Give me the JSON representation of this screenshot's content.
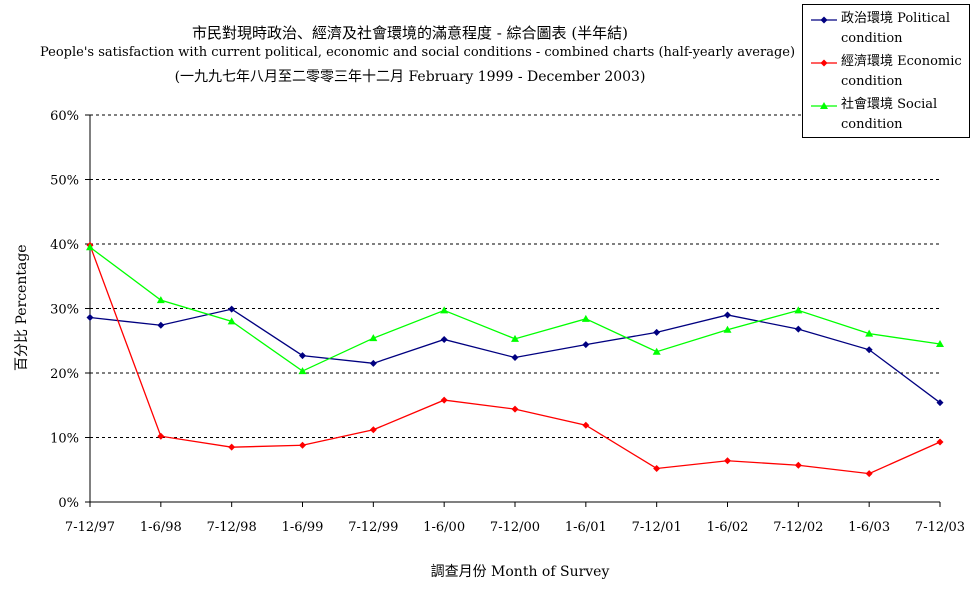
{
  "chart_data": {
    "type": "line",
    "title_zh": "市民對現時政治、經濟及社會環境的滿意程度 - 綜合圖表 (半年結)",
    "title_en": "People's satisfaction with current political, economic and social conditions - combined charts  (half-yearly average)",
    "subtitle": "(一九九七年八月至二零零三年十二月 February 1999 - December 2003)",
    "xlabel": "調查月份 Month of Survey",
    "ylabel": "百分比 Percentage",
    "categories": [
      "7-12/97",
      "1-6/98",
      "7-12/98",
      "1-6/99",
      "7-12/99",
      "1-6/00",
      "7-12/00",
      "1-6/01",
      "7-12/01",
      "1-6/02",
      "7-12/02",
      "1-6/03",
      "7-12/03"
    ],
    "y_ticks": [
      "0%",
      "10%",
      "20%",
      "30%",
      "40%",
      "50%",
      "60%"
    ],
    "ylim": [
      0,
      60
    ],
    "grid": "horizontal dashed",
    "legend_position": "top-right",
    "series": [
      {
        "name": "政治環境 Political condition",
        "color": "#000080",
        "marker": "diamond",
        "values": [
          28.6,
          27.4,
          29.9,
          22.7,
          21.5,
          25.2,
          22.4,
          24.4,
          26.3,
          29.0,
          26.8,
          23.6,
          15.4
        ]
      },
      {
        "name": "經濟環境 Economic condition",
        "color": "#ff0000",
        "marker": "diamond",
        "values": [
          39.8,
          10.2,
          8.5,
          8.8,
          11.2,
          15.8,
          14.4,
          11.9,
          5.2,
          6.4,
          5.7,
          4.4,
          9.3
        ]
      },
      {
        "name": "社會環境 Social condition",
        "color": "#00ff00",
        "marker": "triangle",
        "values": [
          39.5,
          31.3,
          28.0,
          20.3,
          25.4,
          29.7,
          25.3,
          28.4,
          23.3,
          26.7,
          29.7,
          26.1,
          24.5
        ]
      }
    ]
  }
}
